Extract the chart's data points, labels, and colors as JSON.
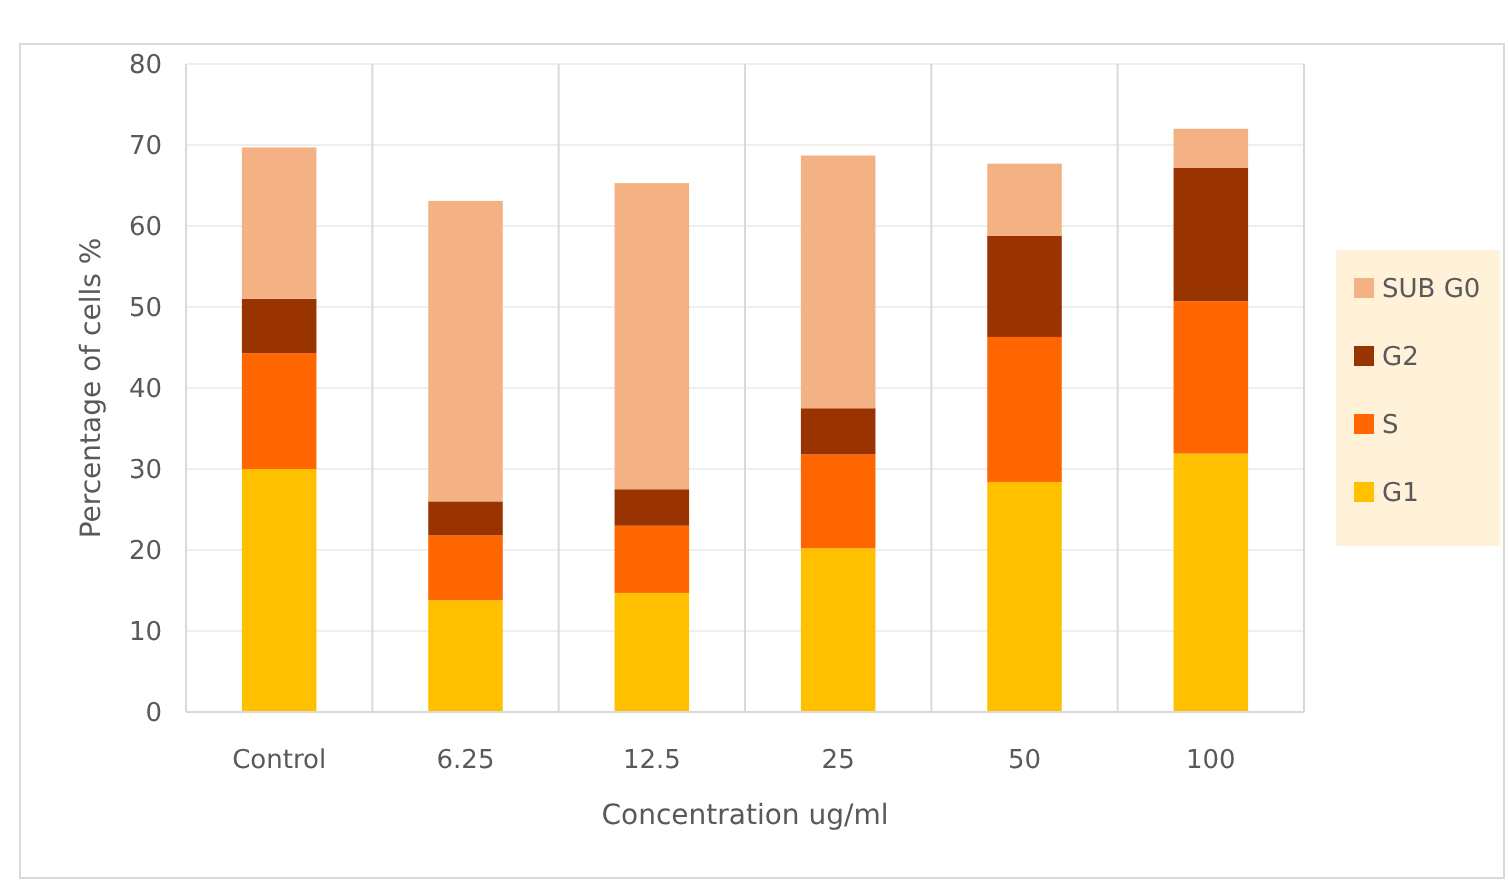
{
  "chart_data": {
    "type": "bar",
    "stacked": true,
    "xlabel": "Concentration ug/ml",
    "ylabel": "Percentage of cells %",
    "categories": [
      "Control",
      "6.25",
      "12.5",
      "25",
      "50",
      "100"
    ],
    "series": [
      {
        "name": "G1",
        "color": "#ffc000",
        "values": [
          30,
          13.8,
          14.7,
          20.2,
          28.4,
          31.9
        ]
      },
      {
        "name": "S",
        "color": "#ff6600",
        "values": [
          14.3,
          8,
          8.3,
          11.6,
          17.9,
          18.8
        ]
      },
      {
        "name": "G2",
        "color": "#993300",
        "values": [
          6.7,
          4.2,
          4.5,
          5.7,
          12.5,
          16.5
        ]
      },
      {
        "name": "SUB G0",
        "color": "#f4b183",
        "values": [
          18.7,
          37.1,
          37.8,
          31.2,
          8.9,
          4.8
        ]
      }
    ],
    "ylim": [
      0,
      80
    ],
    "yticks": [
      0,
      10,
      20,
      30,
      40,
      50,
      60,
      70,
      80
    ],
    "grid": true,
    "legend": "right"
  }
}
